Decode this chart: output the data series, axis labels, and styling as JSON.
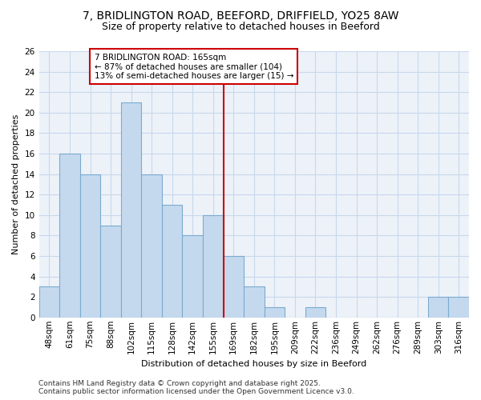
{
  "title1": "7, BRIDLINGTON ROAD, BEEFORD, DRIFFIELD, YO25 8AW",
  "title2": "Size of property relative to detached houses in Beeford",
  "xlabel": "Distribution of detached houses by size in Beeford",
  "ylabel": "Number of detached properties",
  "footer1": "Contains HM Land Registry data © Crown copyright and database right 2025.",
  "footer2": "Contains public sector information licensed under the Open Government Licence v3.0.",
  "categories": [
    "48sqm",
    "61sqm",
    "75sqm",
    "88sqm",
    "102sqm",
    "115sqm",
    "128sqm",
    "142sqm",
    "155sqm",
    "169sqm",
    "182sqm",
    "195sqm",
    "209sqm",
    "222sqm",
    "236sqm",
    "249sqm",
    "262sqm",
    "276sqm",
    "289sqm",
    "303sqm",
    "316sqm"
  ],
  "values": [
    3,
    16,
    14,
    9,
    21,
    14,
    11,
    8,
    10,
    6,
    3,
    1,
    0,
    1,
    0,
    0,
    0,
    0,
    0,
    2,
    2
  ],
  "bar_color": "#c5d9ee",
  "bar_edge_color": "#7aabcf",
  "grid_color": "#c8d8ec",
  "background_color": "#ffffff",
  "plot_bg_color": "#edf2f9",
  "annotation_text": "7 BRIDLINGTON ROAD: 165sqm\n← 87% of detached houses are smaller (104)\n13% of semi-detached houses are larger (15) →",
  "annotation_box_color": "#ffffff",
  "annotation_box_edge": "#cc0000",
  "redline_color": "#cc0000",
  "redline_x": 8.5,
  "ylim": [
    0,
    26
  ],
  "yticks": [
    0,
    2,
    4,
    6,
    8,
    10,
    12,
    14,
    16,
    18,
    20,
    22,
    24,
    26
  ],
  "title_fontsize": 10,
  "subtitle_fontsize": 9,
  "axis_label_fontsize": 8,
  "tick_fontsize": 7.5,
  "footer_fontsize": 6.5
}
